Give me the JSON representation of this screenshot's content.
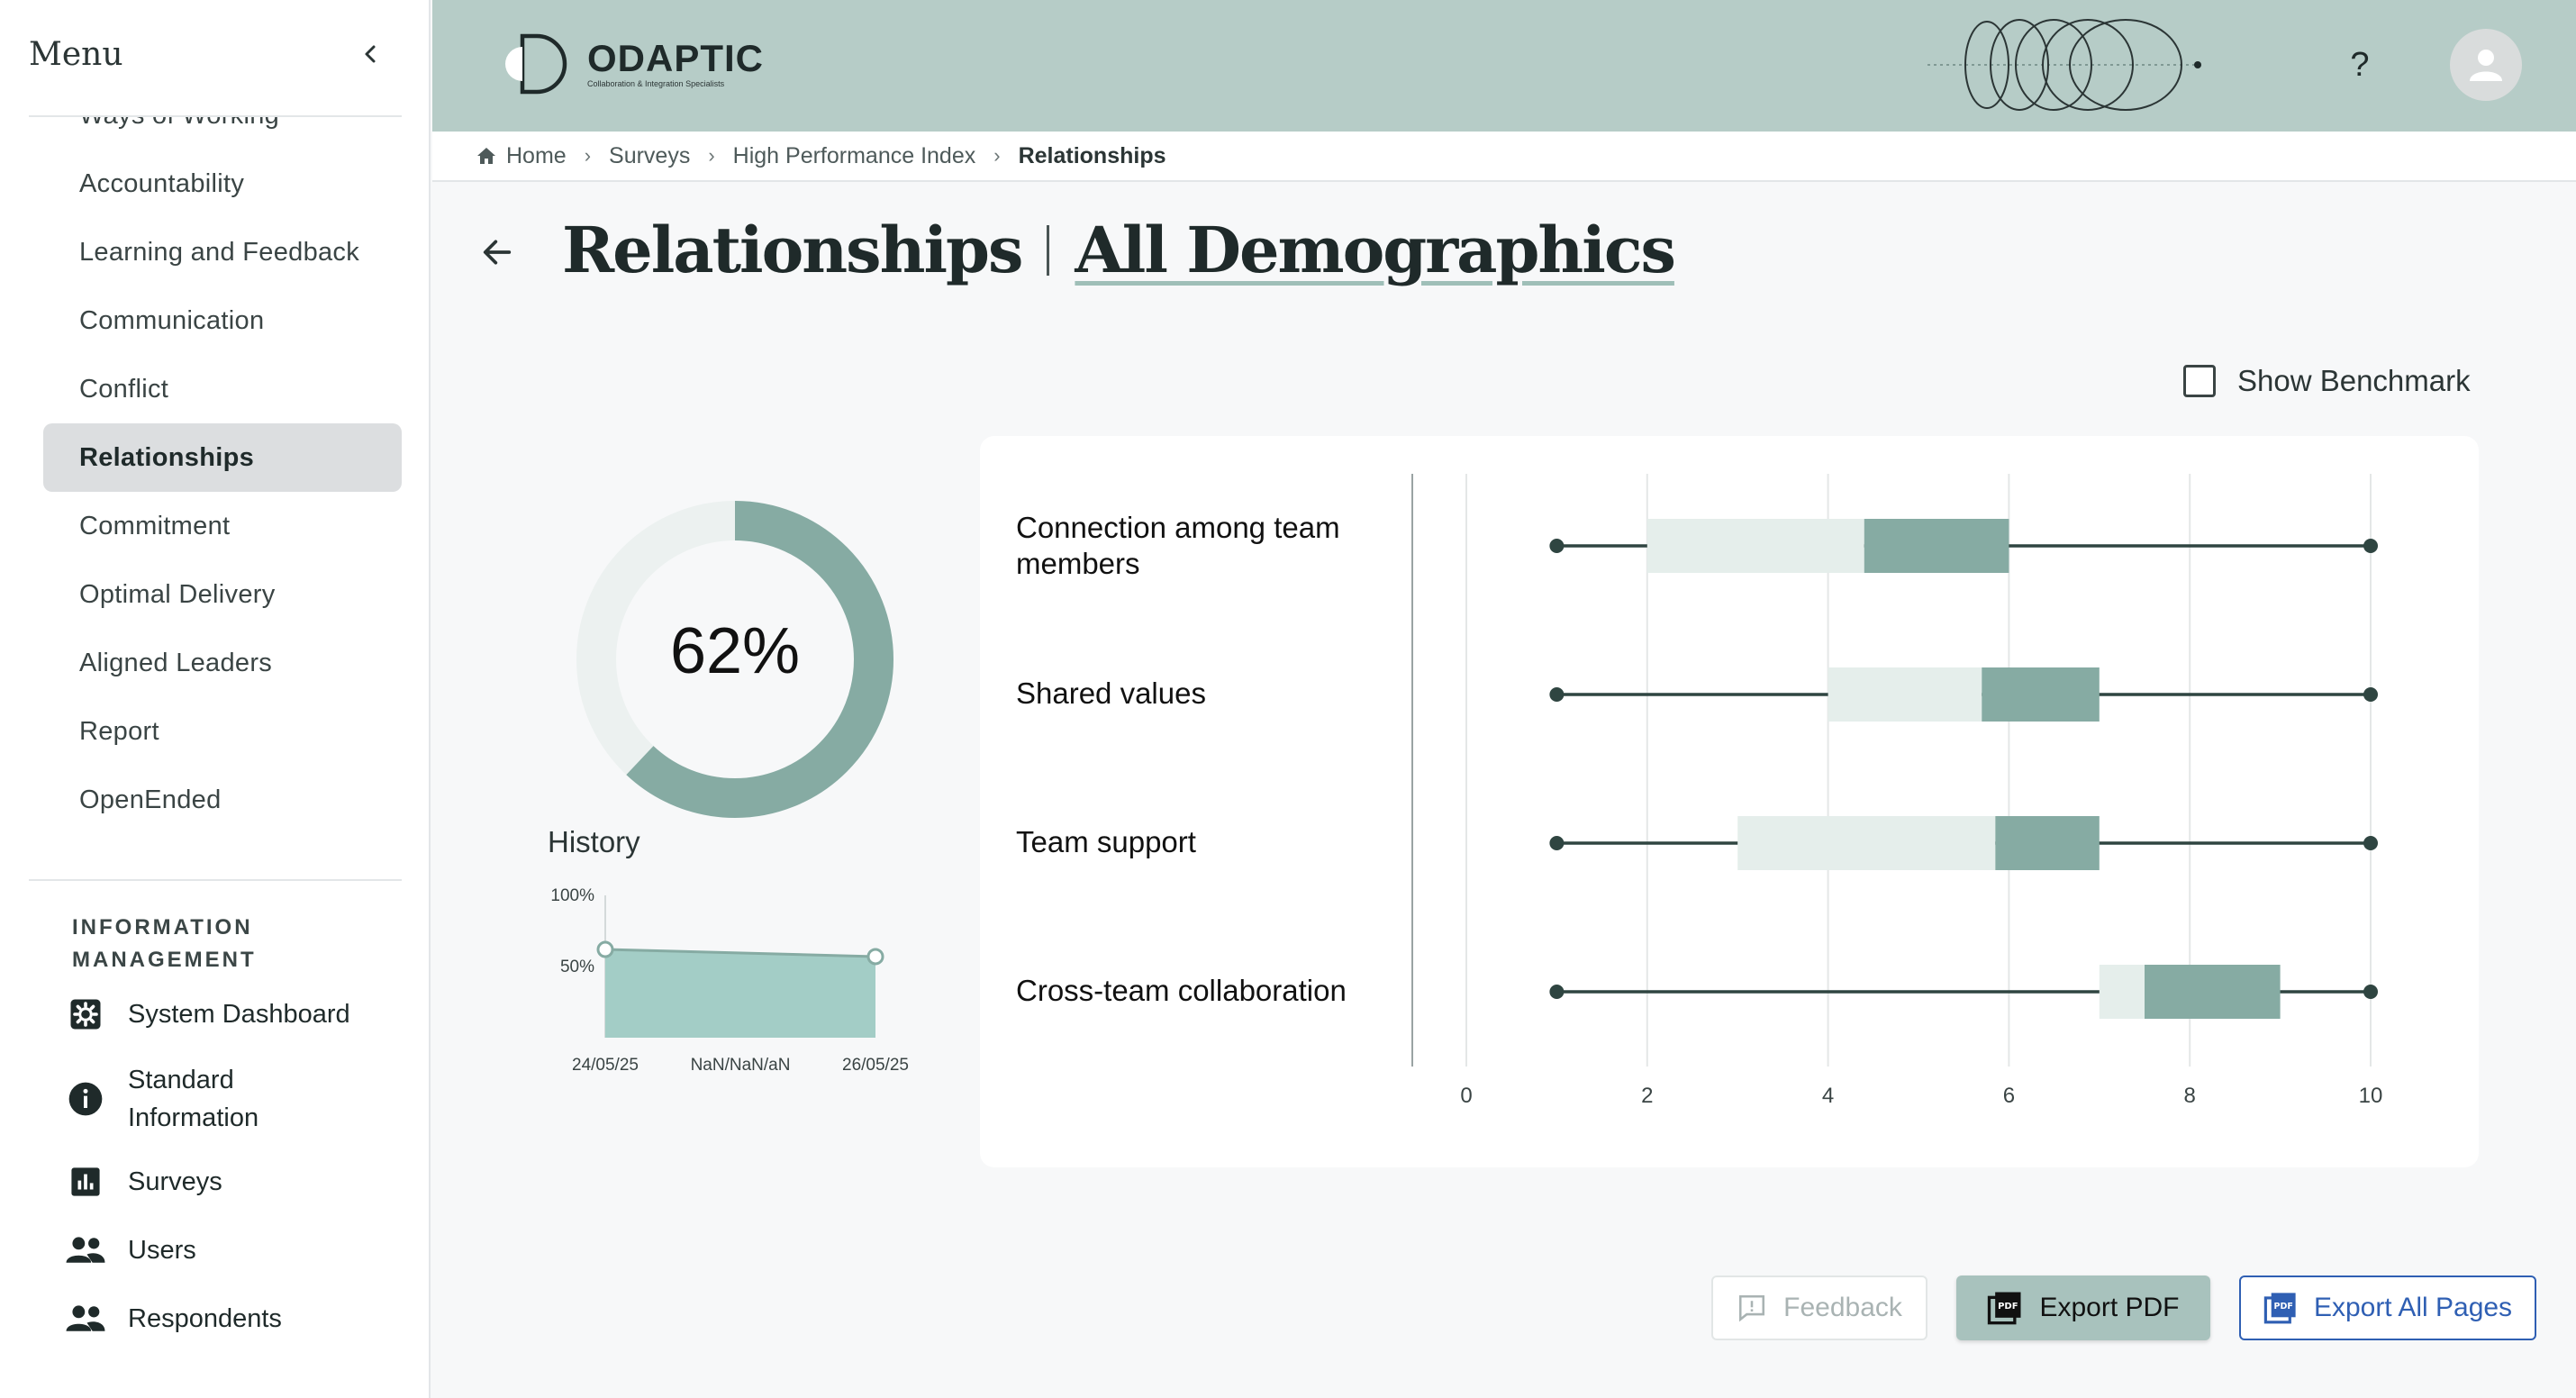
{
  "sidebar": {
    "menu_title": "Menu",
    "nav_items": [
      {
        "label": "Ways of Working",
        "active": false
      },
      {
        "label": "Accountability",
        "active": false
      },
      {
        "label": "Learning and Feedback",
        "active": false
      },
      {
        "label": "Communication",
        "active": false
      },
      {
        "label": "Conflict",
        "active": false
      },
      {
        "label": "Relationships",
        "active": true
      },
      {
        "label": "Commitment",
        "active": false
      },
      {
        "label": "Optimal Delivery",
        "active": false
      },
      {
        "label": "Aligned Leaders",
        "active": false
      },
      {
        "label": "Report",
        "active": false
      },
      {
        "label": "OpenEnded",
        "active": false
      }
    ],
    "info_heading": "INFORMATION MANAGEMENT",
    "info_items": [
      {
        "label": "System Dashboard",
        "icon": "gear-icon"
      },
      {
        "label": "Standard Information",
        "icon": "info-icon"
      },
      {
        "label": "Surveys",
        "icon": "bar-chart-icon"
      },
      {
        "label": "Users",
        "icon": "users-icon"
      },
      {
        "label": "Respondents",
        "icon": "respondents-icon"
      }
    ]
  },
  "header": {
    "logo_name": "ODAPTIC",
    "logo_tagline": "Collaboration & Integration Specialists",
    "help_label": "?"
  },
  "breadcrumb": {
    "items": [
      "Home",
      "Surveys",
      "High Performance Index",
      "Relationships"
    ]
  },
  "page": {
    "title": "Relationships",
    "subtitle": "All Demographics",
    "benchmark_label": "Show Benchmark"
  },
  "score": {
    "value": 62,
    "label": "62%",
    "history_label": "History"
  },
  "colors": {
    "accent": "#86aba3",
    "accent_light": "#e5eeeb",
    "donut_track": "#ecf1f0",
    "area_fill": "#a3cdc6",
    "whisker": "#2f4541",
    "export_all": "#2f5fb3"
  },
  "chart_data": [
    {
      "type": "area",
      "title": "History",
      "x": [
        "24/05/25",
        "NaN/NaN/aN",
        "26/05/25"
      ],
      "values": [
        62,
        null,
        57
      ],
      "ylim": [
        0,
        100
      ],
      "yticks": [
        "100%",
        "50%"
      ]
    },
    {
      "type": "boxplot",
      "categories": [
        "Connection among team members",
        "Shared values",
        "Team support",
        "Cross-team collaboration"
      ],
      "series": [
        {
          "min": 1,
          "q1": 2,
          "median": 4.4,
          "q3": 6,
          "max": 10
        },
        {
          "min": 1,
          "q1": 4,
          "median": 5.7,
          "q3": 7,
          "max": 10
        },
        {
          "min": 1,
          "q1": 3,
          "median": 5.85,
          "q3": 7,
          "max": 10
        },
        {
          "min": 1,
          "q1": 7,
          "median": 7.5,
          "q3": 9,
          "max": 10
        }
      ],
      "xlim": [
        0,
        10
      ],
      "xticks": [
        0,
        2,
        4,
        6,
        8,
        10
      ],
      "grid": true
    }
  ],
  "buttons": {
    "feedback": "Feedback",
    "export_pdf": "Export PDF",
    "export_all": "Export All Pages"
  }
}
